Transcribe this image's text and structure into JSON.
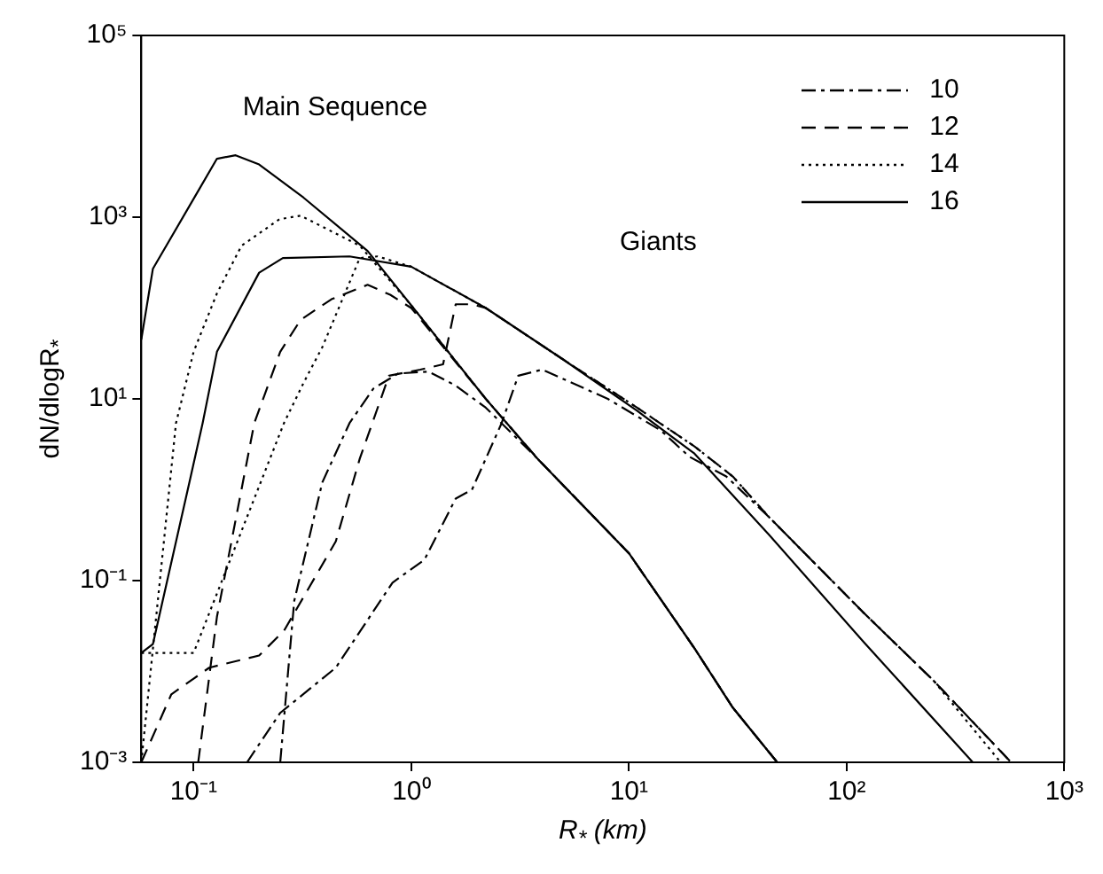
{
  "chart_data": {
    "type": "line",
    "xlabel": "R$_{*}$ (km)",
    "ylabel": "dN/dlogR$_{*}$",
    "log": "xy",
    "grid": false,
    "legend": "top right",
    "marker": "none",
    "xlim": [
      0.0575,
      1000
    ],
    "ylim": [
      0.001,
      100000
    ],
    "xticks": [
      {
        "value": 0.1,
        "label": "10⁻¹"
      },
      {
        "value": 1,
        "label": "10⁰"
      },
      {
        "value": 10,
        "label": "10¹"
      },
      {
        "value": 100,
        "label": "10²"
      },
      {
        "value": 1000,
        "label": "10³"
      }
    ],
    "yticks": [
      {
        "value": 0.001,
        "label": "10⁻³"
      },
      {
        "value": 0.1,
        "label": "10⁻¹"
      },
      {
        "value": 10,
        "label": "10¹"
      },
      {
        "value": 1000,
        "label": "10³"
      },
      {
        "value": 100000,
        "label": "10⁵"
      }
    ],
    "annotations": [
      "Main Sequence",
      "Giants"
    ],
    "series": [
      {
        "name": "10",
        "color": "#000000",
        "line_style": "dashdot",
        "x": [
          0.25,
          0.29,
          0.39,
          0.52,
          0.67,
          0.87,
          1.2,
          1.6,
          2.2,
          3.8,
          10,
          20,
          30,
          48
        ],
        "values": [
          0.001,
          0.06,
          1.2,
          5.4,
          13,
          19,
          20,
          14,
          8,
          2.2,
          0.2,
          0.018,
          0.004,
          0.001
        ]
      },
      {
        "name": "12",
        "color": "#000000",
        "line_style": "dashed",
        "x": [
          0.105,
          0.128,
          0.19,
          0.25,
          0.31,
          0.43,
          0.63,
          0.8,
          1,
          2.2,
          3.8,
          10,
          20,
          30,
          48
        ],
        "values": [
          0.001,
          0.04,
          5.4,
          33,
          74,
          125,
          180,
          140,
          100,
          10,
          2.2,
          0.2,
          0.018,
          0.004,
          0.001
        ]
      },
      {
        "name": "14",
        "color": "#000000",
        "line_style": "dotted",
        "x": [
          0.0575,
          0.083,
          0.1,
          0.128,
          0.166,
          0.248,
          0.31,
          0.58,
          1,
          2.2,
          3.8,
          10,
          20,
          30,
          48
        ],
        "values": [
          0.001,
          5.4,
          33,
          145,
          485,
          950,
          1040,
          485,
          107,
          10,
          2.2,
          0.2,
          0.018,
          0.004,
          0.001
        ]
      },
      {
        "name": "16",
        "color": "#000000",
        "line_style": "solid",
        "x": [
          0.0575,
          0.065,
          0.104,
          0.128,
          0.156,
          0.2,
          0.32,
          0.63,
          1,
          2.2,
          3.8,
          10,
          20,
          30,
          48
        ],
        "values": [
          45,
          270,
          1870,
          4400,
          4800,
          3800,
          1640,
          425,
          107,
          10,
          2.2,
          0.2,
          0.018,
          0.004,
          0.001
        ]
      },
      {
        "color": "#000000",
        "line_style": "dashdot",
        "x": [
          0.176,
          0.25,
          0.45,
          0.82,
          1.15,
          1.6,
          1.9,
          2.6,
          3.1,
          4,
          8,
          14,
          19,
          28,
          44,
          120,
          250,
          570
        ],
        "values": [
          0.001,
          0.0035,
          0.011,
          0.095,
          0.17,
          0.8,
          1,
          5.4,
          18,
          21,
          10,
          4.5,
          2.3,
          1.4,
          0.5,
          0.044,
          0.008,
          0.001
        ]
      },
      {
        "color": "#000000",
        "line_style": "dashed",
        "x": [
          0.0575,
          0.079,
          0.118,
          0.2,
          0.26,
          0.45,
          0.58,
          0.79,
          1.1,
          1.4,
          1.6,
          1.9,
          2.2,
          5,
          10.9,
          20,
          30,
          44,
          120,
          250,
          570
        ],
        "values": [
          0.001,
          0.0056,
          0.011,
          0.015,
          0.028,
          0.27,
          2.2,
          18,
          21,
          24,
          110,
          110,
          100,
          27,
          8,
          3,
          1.4,
          0.5,
          0.044,
          0.008,
          0.001
        ]
      },
      {
        "color": "#000000",
        "line_style": "dotted",
        "x": [
          0.0575,
          0.1,
          0.26,
          0.32,
          0.39,
          0.58,
          0.7,
          1,
          2.2,
          5,
          10.9,
          20,
          30,
          44,
          120,
          250,
          510
        ],
        "values": [
          0.016,
          0.016,
          5.4,
          15,
          37,
          355,
          370,
          285,
          100,
          27,
          8,
          3,
          1.4,
          0.5,
          0.044,
          0.008,
          0.001
        ]
      },
      {
        "color": "#000000",
        "line_style": "solid",
        "x": [
          0.0575,
          0.065,
          0.097,
          0.11,
          0.128,
          0.2,
          0.257,
          0.52,
          1,
          2.2,
          5,
          10.9,
          20,
          44,
          120,
          380
        ],
        "values": [
          0.016,
          0.02,
          1.4,
          5.4,
          33,
          245,
          355,
          370,
          285,
          100,
          27,
          7.4,
          2.5,
          0.32,
          0.021,
          0.001
        ]
      }
    ]
  }
}
